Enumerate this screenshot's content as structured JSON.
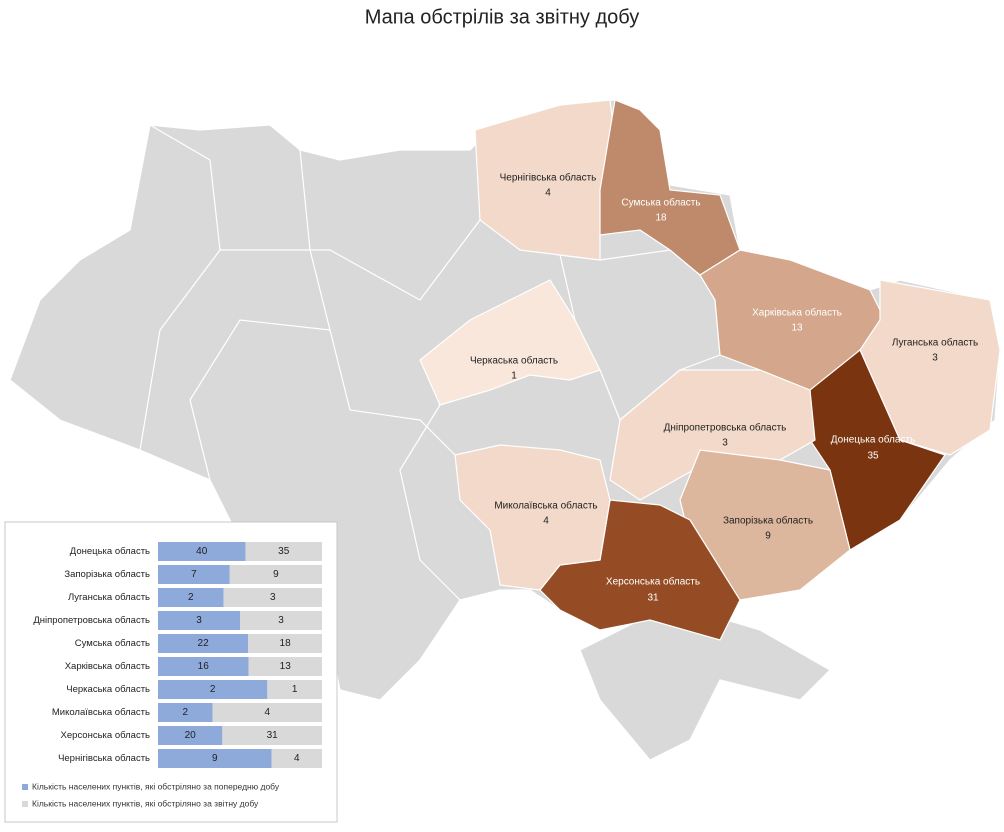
{
  "title": "Мапа обстрілів за звітну добу",
  "map": {
    "regions": [
      {
        "name": "Чернігівська область",
        "value": 4,
        "color": "#f2d9c9",
        "text_color": "#222222"
      },
      {
        "name": "Сумська область",
        "value": 18,
        "color": "#bf8a6b",
        "text_color": "#ffffff"
      },
      {
        "name": "Харківська область",
        "value": 13,
        "color": "#d4a68b",
        "text_color": "#ffffff"
      },
      {
        "name": "Луганська область",
        "value": 3,
        "color": "#f2d9c9",
        "text_color": "#222222"
      },
      {
        "name": "Донецька область",
        "value": 35,
        "color": "#7b3410",
        "text_color": "#ffffff"
      },
      {
        "name": "Дніпропетровська область",
        "value": 3,
        "color": "#f2d9c9",
        "text_color": "#222222"
      },
      {
        "name": "Запорізька область",
        "value": 9,
        "color": "#dcb69d",
        "text_color": "#222222"
      },
      {
        "name": "Херсонська область",
        "value": 31,
        "color": "#954c24",
        "text_color": "#ffffff"
      },
      {
        "name": "Миколаївська область",
        "value": 4,
        "color": "#f2d9c9",
        "text_color": "#222222"
      },
      {
        "name": "Черкаська область",
        "value": 1,
        "color": "#f9e7dc",
        "text_color": "#222222"
      }
    ]
  },
  "chart_data": {
    "type": "bar",
    "stacked": "percent",
    "orientation": "horizontal",
    "categories": [
      "Донецька область",
      "Запорізька область",
      "Луганська область",
      "Дніпропетровська область",
      "Сумська область",
      "Харківська область",
      "Черкаська область",
      "Миколаївська область",
      "Херсонська область",
      "Чернігівська область"
    ],
    "series": [
      {
        "name": "Кількість населених пунктів, які обстріляно за попередню добу",
        "color": "#8eaadb",
        "values": [
          40,
          7,
          2,
          3,
          22,
          16,
          2,
          2,
          20,
          9
        ]
      },
      {
        "name": "Кількість населених пунктів, які обстріляно за звітну добу",
        "color": "#d9d9d9",
        "values": [
          35,
          9,
          3,
          3,
          18,
          13,
          1,
          4,
          31,
          4
        ]
      }
    ]
  }
}
